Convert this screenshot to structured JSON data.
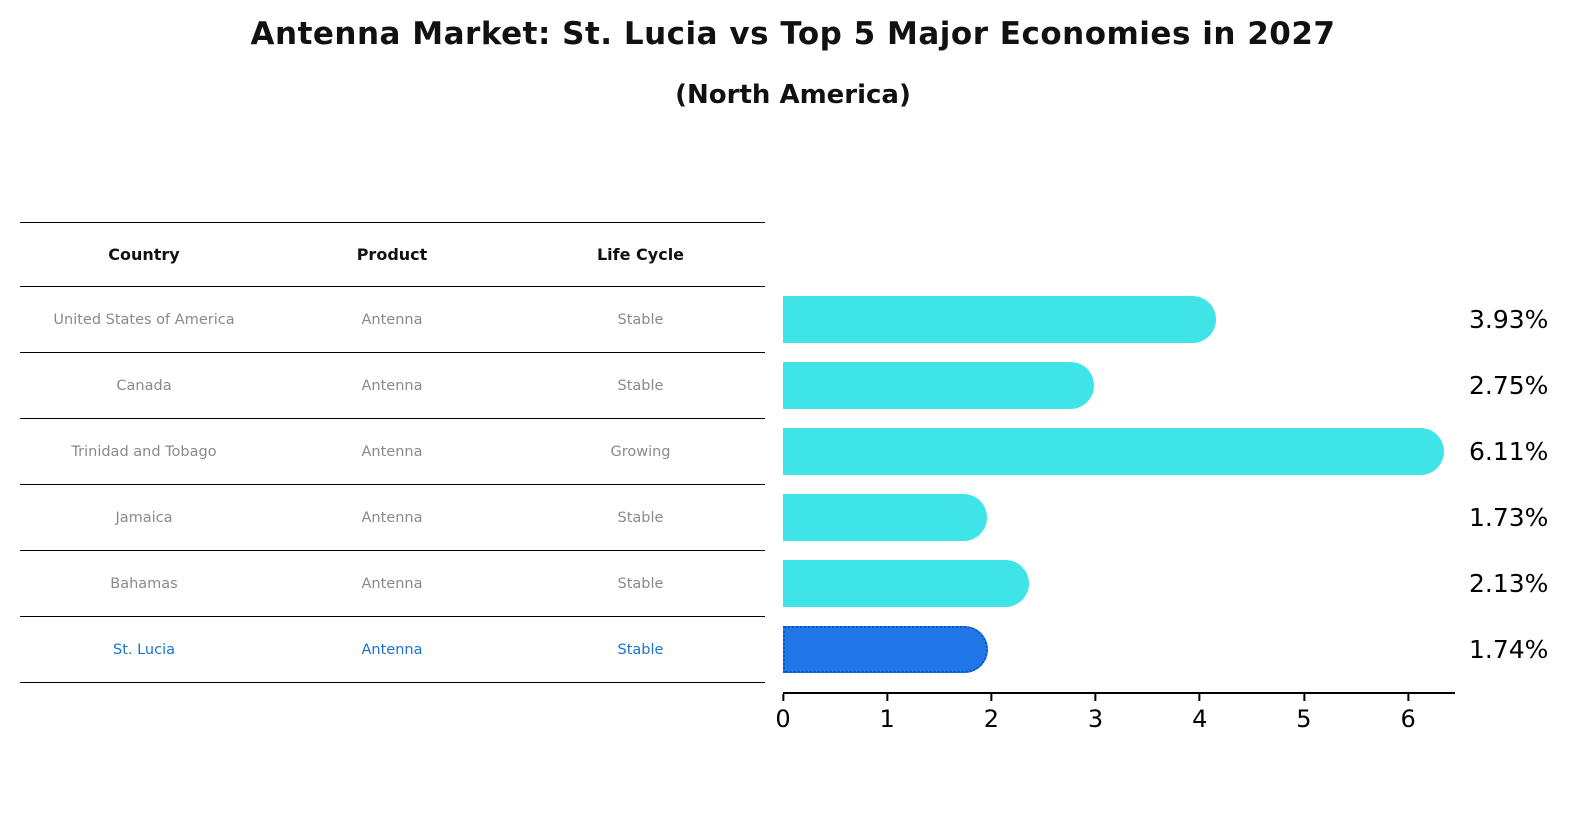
{
  "title": "Antenna Market: St. Lucia vs Top 5 Major Economies in 2027",
  "subtitle": "(North America)",
  "table": {
    "headers": {
      "country": "Country",
      "product": "Product",
      "life_cycle": "Life Cycle"
    }
  },
  "rows": [
    {
      "country": "United States of America",
      "product": "Antenna",
      "life_cycle": "Stable",
      "value": 3.93,
      "value_label": "3.93%",
      "highlight": false
    },
    {
      "country": "Canada",
      "product": "Antenna",
      "life_cycle": "Stable",
      "value": 2.75,
      "value_label": "2.75%",
      "highlight": false
    },
    {
      "country": "Trinidad and Tobago",
      "product": "Antenna",
      "life_cycle": "Growing",
      "value": 6.11,
      "value_label": "6.11%",
      "highlight": false
    },
    {
      "country": "Jamaica",
      "product": "Antenna",
      "life_cycle": "Stable",
      "value": 1.73,
      "value_label": "1.73%",
      "highlight": false
    },
    {
      "country": "Bahamas",
      "product": "Antenna",
      "life_cycle": "Stable",
      "value": 2.13,
      "value_label": "2.13%",
      "highlight": false
    },
    {
      "country": "St. Lucia",
      "product": "Antenna",
      "life_cycle": "Stable",
      "value": 1.74,
      "value_label": "1.74%",
      "highlight": true
    }
  ],
  "chart_data": {
    "type": "bar",
    "orientation": "horizontal",
    "title": "Antenna Market: St. Lucia vs Top 5 Major Economies in 2027",
    "subtitle": "(North America)",
    "categories": [
      "United States of America",
      "Canada",
      "Trinidad and Tobago",
      "Jamaica",
      "Bahamas",
      "St. Lucia"
    ],
    "values": [
      3.93,
      2.75,
      6.11,
      1.73,
      2.13,
      1.74
    ],
    "value_labels": [
      "3.93%",
      "2.75%",
      "6.11%",
      "1.73%",
      "2.13%",
      "1.74%"
    ],
    "xlabel": "",
    "ylabel": "",
    "xlim": [
      0,
      6.45
    ],
    "x_ticks": [
      0,
      1,
      2,
      3,
      4,
      5,
      6
    ],
    "x_tick_labels": [
      "0",
      "1",
      "2",
      "3",
      "4",
      "5",
      "6"
    ],
    "grid": false,
    "legend": false,
    "bar_color": "#3EE4E8",
    "highlight_color": "#2277E8",
    "highlight_border_color": "#0B57C2",
    "highlight_text_color": "#1A73D1",
    "row_text_color": "#8A8A8A",
    "highlight_index": 5
  }
}
